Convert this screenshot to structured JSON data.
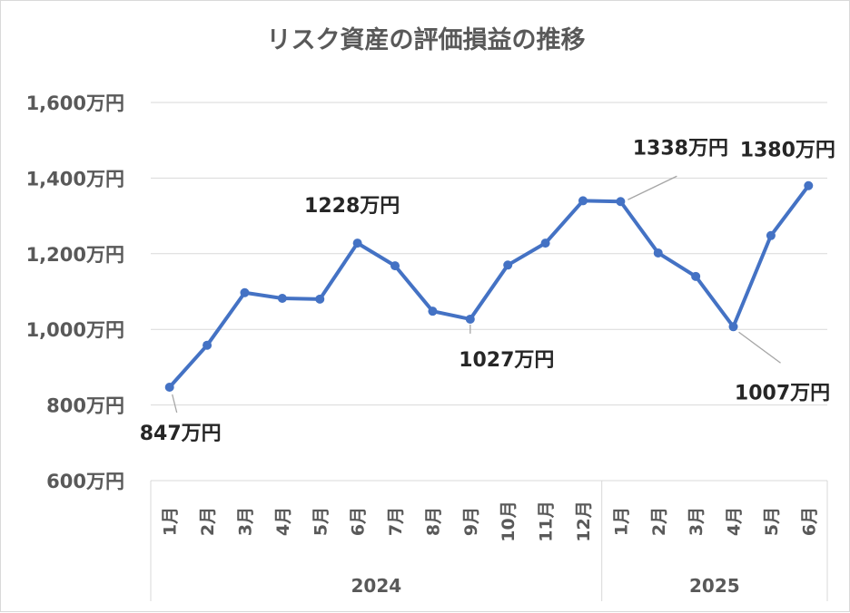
{
  "chart_data": {
    "type": "line",
    "title": "リスク資産の評価損益の推移",
    "ylim": [
      600,
      1600
    ],
    "yticks": [
      600,
      800,
      1000,
      1200,
      1400,
      1600
    ],
    "ytick_labels": [
      "600万円",
      "800万円",
      "1,000万円",
      "1,200万円",
      "1,400万円",
      "1,600万円"
    ],
    "grid": true,
    "legend": "none",
    "color": "#4472c4",
    "categories": [
      "1月",
      "2月",
      "3月",
      "4月",
      "5月",
      "6月",
      "7月",
      "8月",
      "9月",
      "10月",
      "11月",
      "12月",
      "1月",
      "2月",
      "3月",
      "4月",
      "5月",
      "6月"
    ],
    "groups": [
      {
        "label": "2024",
        "count": 12
      },
      {
        "label": "2025",
        "count": 6
      }
    ],
    "values": [
      847,
      958,
      1097,
      1082,
      1080,
      1228,
      1168,
      1048,
      1027,
      1170,
      1228,
      1340,
      1338,
      1202,
      1140,
      1007,
      1248,
      1380
    ],
    "data_labels": [
      {
        "index": 0,
        "text": "847万円"
      },
      {
        "index": 5,
        "text": "1228万円"
      },
      {
        "index": 8,
        "text": "1027万円"
      },
      {
        "index": 12,
        "text": "1338万円"
      },
      {
        "index": 15,
        "text": "1007万円"
      },
      {
        "index": 17,
        "text": "1380万円"
      }
    ]
  }
}
